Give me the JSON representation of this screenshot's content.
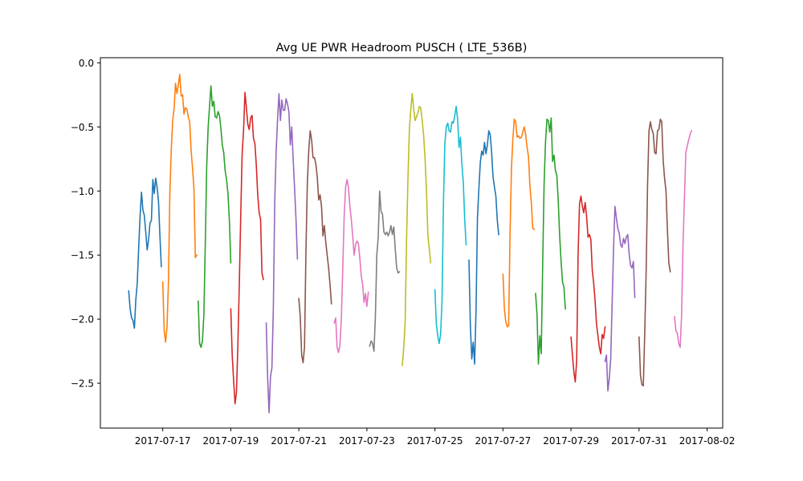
{
  "chart_data": {
    "type": "line",
    "title": "Avg UE PWR Headroom PUSCH ( LTE_536B)",
    "xlabel": "",
    "ylabel": "",
    "xlim": [
      "2017-07-15 04:00",
      "2017-08-02 11:00"
    ],
    "ylim": [
      -2.85,
      0.04
    ],
    "x_ticks": [
      "2017-07-17",
      "2017-07-19",
      "2017-07-21",
      "2017-07-23",
      "2017-07-25",
      "2017-07-27",
      "2017-07-29",
      "2017-07-31",
      "2017-08-02"
    ],
    "y_ticks": [
      0.0,
      -0.5,
      -1.0,
      -1.5,
      -2.0,
      -2.5
    ],
    "y_tick_labels": [
      "0.0",
      "−0.5",
      "−1.0",
      "−1.5",
      "−2.0",
      "−2.5"
    ],
    "grid": false,
    "legend": "none",
    "colors": [
      "#1f77b4",
      "#ff7f0e",
      "#2ca02c",
      "#d62728",
      "#9467bd",
      "#8c564b",
      "#e377c2",
      "#7f7f7f",
      "#bcbd22",
      "#17becf"
    ],
    "series": [
      {
        "start": "2017-07-16 00:00",
        "step_hours": 1,
        "values": [
          -1.78,
          -1.92,
          -1.99,
          -2.01,
          -2.07,
          -1.85,
          -1.72,
          -1.45,
          -1.2,
          -1.01,
          -1.15,
          -1.19,
          -1.32,
          -1.46,
          -1.38,
          -1.25,
          -1.23,
          -0.91,
          -1.02,
          -0.9,
          -0.97,
          -1.08,
          -1.35,
          -1.59
        ]
      },
      {
        "start": "2017-07-17 00:00",
        "step_hours": 1,
        "values": [
          -1.71,
          -2.09,
          -2.18,
          -2.06,
          -1.72,
          -1.02,
          -0.68,
          -0.45,
          -0.36,
          -0.16,
          -0.24,
          -0.17,
          -0.09,
          -0.26,
          -0.25,
          -0.4,
          -0.35,
          -0.36,
          -0.42,
          -0.46,
          -0.68,
          -0.82,
          -0.98,
          -1.52,
          -1.5
        ]
      },
      {
        "start": "2017-07-18 01:00",
        "step_hours": 1,
        "values": [
          -1.86,
          -2.19,
          -2.22,
          -2.17,
          -1.97,
          -1.42,
          -0.81,
          -0.51,
          -0.34,
          -0.18,
          -0.34,
          -0.3,
          -0.42,
          -0.43,
          -0.38,
          -0.41,
          -0.51,
          -0.64,
          -0.7,
          -0.84,
          -0.91,
          -1.02,
          -1.23,
          -1.56
        ]
      },
      {
        "start": "2017-07-19 00:00",
        "step_hours": 1,
        "values": [
          -1.92,
          -2.28,
          -2.48,
          -2.66,
          -2.57,
          -2.2,
          -1.73,
          -1.2,
          -0.71,
          -0.53,
          -0.23,
          -0.35,
          -0.48,
          -0.52,
          -0.43,
          -0.41,
          -0.59,
          -0.63,
          -0.8,
          -1.03,
          -1.17,
          -1.22,
          -1.64,
          -1.69
        ]
      },
      {
        "start": "2017-07-20 01:00",
        "step_hours": 1,
        "values": [
          -2.03,
          -2.46,
          -2.73,
          -2.45,
          -2.38,
          -1.92,
          -1.08,
          -0.69,
          -0.44,
          -0.24,
          -0.45,
          -0.29,
          -0.37,
          -0.37,
          -0.28,
          -0.32,
          -0.38,
          -0.64,
          -0.5,
          -0.75,
          -0.98,
          -1.22,
          -1.53
        ]
      },
      {
        "start": "2017-07-21 00:00",
        "step_hours": 1,
        "values": [
          -1.84,
          -1.98,
          -2.28,
          -2.34,
          -2.22,
          -1.48,
          -0.94,
          -0.68,
          -0.53,
          -0.6,
          -0.74,
          -0.74,
          -0.79,
          -0.89,
          -1.07,
          -1.03,
          -1.12,
          -1.35,
          -1.27,
          -1.4,
          -1.5,
          -1.6,
          -1.73,
          -1.88
        ]
      },
      {
        "start": "2017-07-22 01:00",
        "step_hours": 1,
        "values": [
          -2.03,
          -1.99,
          -2.22,
          -2.26,
          -2.2,
          -1.99,
          -1.6,
          -1.19,
          -0.97,
          -0.91,
          -0.97,
          -1.12,
          -1.22,
          -1.35,
          -1.5,
          -1.42,
          -1.39,
          -1.41,
          -1.52,
          -1.66,
          -1.73,
          -1.87,
          -1.8,
          -1.9,
          -1.79
        ]
      },
      {
        "start": "2017-07-23 02:00",
        "step_hours": 1,
        "values": [
          -2.21,
          -2.17,
          -2.19,
          -2.25,
          -1.98,
          -1.5,
          -1.36,
          -1.0,
          -1.16,
          -1.18,
          -1.32,
          -1.34,
          -1.32,
          -1.35,
          -1.32,
          -1.27,
          -1.34,
          -1.28,
          -1.45,
          -1.6,
          -1.64,
          -1.63
        ]
      },
      {
        "start": "2017-07-24 01:00",
        "step_hours": 1,
        "values": [
          -2.36,
          -2.22,
          -2.02,
          -1.37,
          -0.89,
          -0.51,
          -0.36,
          -0.24,
          -0.36,
          -0.45,
          -0.42,
          -0.39,
          -0.34,
          -0.35,
          -0.45,
          -0.56,
          -0.74,
          -0.99,
          -1.34,
          -1.45,
          -1.56
        ]
      },
      {
        "start": "2017-07-25 00:00",
        "step_hours": 1,
        "values": [
          -1.77,
          -2.04,
          -2.13,
          -2.19,
          -2.12,
          -1.86,
          -1.1,
          -0.63,
          -0.5,
          -0.47,
          -0.53,
          -0.54,
          -0.46,
          -0.47,
          -0.41,
          -0.34,
          -0.44,
          -0.66,
          -0.58,
          -0.79,
          -0.93,
          -1.22,
          -1.42
        ]
      },
      {
        "start": "2017-07-26 00:00",
        "step_hours": 1,
        "values": [
          -1.54,
          -2.05,
          -2.31,
          -2.18,
          -2.35,
          -1.93,
          -1.21,
          -0.98,
          -0.78,
          -0.69,
          -0.72,
          -0.62,
          -0.71,
          -0.64,
          -0.53,
          -0.56,
          -0.7,
          -0.89,
          -0.97,
          -1.04,
          -1.23,
          -1.34
        ]
      },
      {
        "start": "2017-07-27 00:00",
        "step_hours": 1,
        "values": [
          -1.65,
          -1.92,
          -2.02,
          -2.06,
          -2.05,
          -1.33,
          -0.82,
          -0.59,
          -0.44,
          -0.46,
          -0.58,
          -0.57,
          -0.59,
          -0.58,
          -0.54,
          -0.5,
          -0.56,
          -0.66,
          -0.73,
          -0.96,
          -1.09,
          -1.29,
          -1.3
        ]
      },
      {
        "start": "2017-07-27 23:00",
        "step_hours": 1,
        "values": [
          -1.8,
          -1.96,
          -2.35,
          -2.13,
          -2.27,
          -1.58,
          -0.95,
          -0.62,
          -0.44,
          -0.45,
          -0.54,
          -0.43,
          -0.77,
          -0.72,
          -0.84,
          -0.88,
          -1.08,
          -1.35,
          -1.55,
          -1.71,
          -1.75,
          -1.92
        ]
      },
      {
        "start": "2017-07-29 00:00",
        "step_hours": 1,
        "values": [
          -2.14,
          -2.28,
          -2.41,
          -2.49,
          -2.32,
          -1.49,
          -1.1,
          -1.04,
          -1.12,
          -1.17,
          -1.09,
          -1.2,
          -1.36,
          -1.34,
          -1.38,
          -1.62,
          -1.72,
          -1.86,
          -2.04,
          -2.13,
          -2.22,
          -2.27,
          -2.12,
          -2.15,
          -2.06
        ]
      },
      {
        "start": "2017-07-30 00:00",
        "step_hours": 1,
        "values": [
          -2.33,
          -2.28,
          -2.56,
          -2.46,
          -2.31,
          -1.88,
          -1.45,
          -1.12,
          -1.21,
          -1.29,
          -1.33,
          -1.42,
          -1.44,
          -1.37,
          -1.41,
          -1.36,
          -1.34,
          -1.49,
          -1.58,
          -1.6,
          -1.55,
          -1.83
        ]
      },
      {
        "start": "2017-07-31 00:00",
        "step_hours": 1,
        "values": [
          -2.14,
          -2.44,
          -2.51,
          -2.52,
          -2.11,
          -1.63,
          -0.95,
          -0.53,
          -0.46,
          -0.52,
          -0.55,
          -0.7,
          -0.71,
          -0.53,
          -0.52,
          -0.44,
          -0.46,
          -0.76,
          -0.9,
          -1.0,
          -1.3,
          -1.56,
          -1.63
        ]
      },
      {
        "start": "2017-08-01 01:00",
        "step_hours": 1,
        "values": [
          -1.98,
          -2.09,
          -2.11,
          -2.19,
          -2.22,
          -1.97,
          -1.42,
          -1.06,
          -0.7,
          -0.65,
          -0.6,
          -0.56,
          -0.53
        ]
      }
    ]
  }
}
